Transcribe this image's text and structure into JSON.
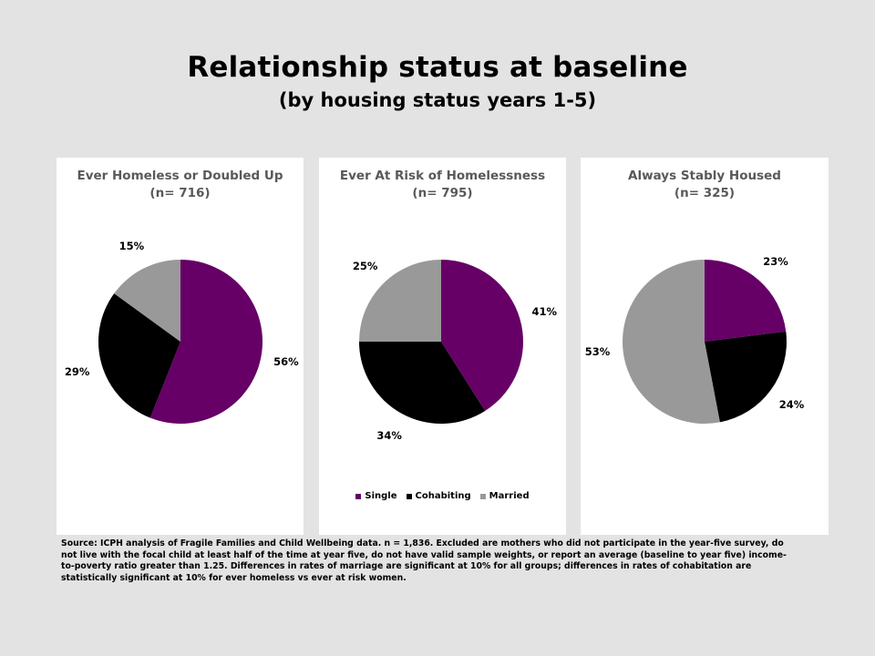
{
  "title": "Relationship status at baseline",
  "subtitle": "(by housing status years 1-5)",
  "colors": {
    "Single": "#660066",
    "Cohabiting": "#000000",
    "Married": "#999999"
  },
  "chart_data": [
    {
      "type": "pie",
      "title": "Ever Homeless or Doubled Up",
      "subtitle": "(n= 716)",
      "categories": [
        "Single",
        "Cohabiting",
        "Married"
      ],
      "values": [
        56,
        29,
        15
      ],
      "labels": [
        "56%",
        "29%",
        "15%"
      ]
    },
    {
      "type": "pie",
      "title": "Ever At Risk of Homelessness",
      "subtitle": "(n= 795)",
      "categories": [
        "Single",
        "Cohabiting",
        "Married"
      ],
      "values": [
        41,
        34,
        25
      ],
      "labels": [
        "41%",
        "34%",
        "25%"
      ],
      "legend": [
        "Single",
        "Cohabiting",
        "Married"
      ],
      "legend_position": "bottom"
    },
    {
      "type": "pie",
      "title": "Always Stably Housed",
      "subtitle": "(n= 325)",
      "categories": [
        "Single",
        "Cohabiting",
        "Married"
      ],
      "values": [
        23,
        24,
        53
      ],
      "labels": [
        "23%",
        "24%",
        "53%"
      ]
    }
  ],
  "source": "Source: ICPH analysis of Fragile Families and Child Wellbeing data. n = 1,836. Excluded are mothers who did not participate in the year-five survey, do not live with the focal child at least half of the time at year five, do not have valid sample weights, or report an average (baseline to year five) income-to-poverty ratio greater than 1.25. Differences in rates of marriage are significant at 10% for all groups; differences in rates of cohabitation are statistically significant at 10% for ever homeless vs ever at risk women."
}
